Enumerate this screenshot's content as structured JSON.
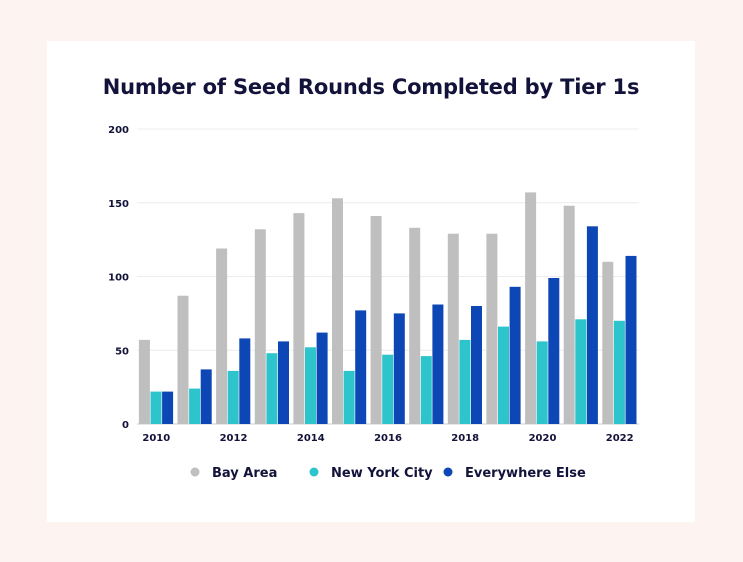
{
  "chart_data": {
    "type": "bar",
    "title": "Number of Seed Rounds Completed by Tier 1s",
    "xlabel": "",
    "ylabel": "",
    "ylim": [
      0,
      200
    ],
    "yticks": [
      0,
      50,
      100,
      150,
      200
    ],
    "categories": [
      "2010",
      "2011",
      "2012",
      "2013",
      "2014",
      "2015",
      "2016",
      "2017",
      "2018",
      "2019",
      "2020",
      "2021",
      "2022"
    ],
    "xtick_labels": [
      "2010",
      "2012",
      "2014",
      "2016",
      "2018",
      "2020",
      "2022"
    ],
    "grid": true,
    "legend_position": "bottom",
    "series": [
      {
        "name": "Bay Area",
        "color": "#bfbfbf",
        "values": [
          57,
          87,
          119,
          132,
          143,
          153,
          141,
          133,
          129,
          129,
          157,
          148,
          110
        ]
      },
      {
        "name": "New York City",
        "color": "#2ec4cc",
        "values": [
          22,
          24,
          36,
          48,
          52,
          36,
          47,
          46,
          57,
          66,
          56,
          71,
          70
        ]
      },
      {
        "name": "Everywhere Else",
        "color": "#0d47b5",
        "values": [
          22,
          37,
          58,
          56,
          62,
          77,
          75,
          81,
          80,
          93,
          99,
          134,
          114
        ]
      }
    ]
  }
}
